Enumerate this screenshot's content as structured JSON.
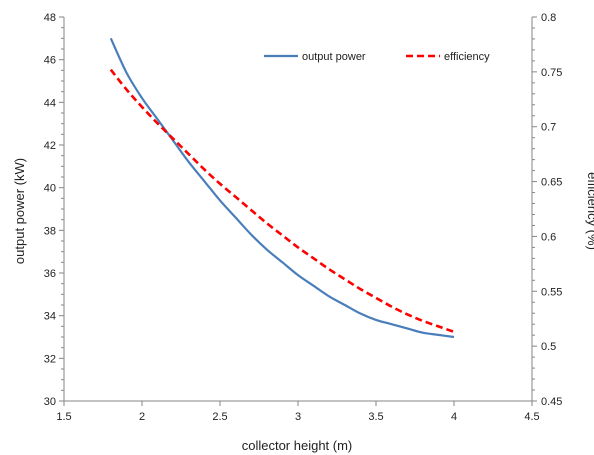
{
  "chart_data": {
    "type": "line",
    "xlabel": "collector height (m)",
    "ylabel": "output power (kW)",
    "y2label": "efficiency (%)",
    "xlim": [
      1.5,
      4.5
    ],
    "ylim": [
      30,
      48
    ],
    "y2lim": [
      0.45,
      0.8
    ],
    "x_ticks": [
      "1.5",
      "2",
      "2.5",
      "3",
      "3.5",
      "4",
      "4.5"
    ],
    "y_ticks": [
      "30",
      "32",
      "34",
      "36",
      "38",
      "40",
      "42",
      "44",
      "46",
      "48"
    ],
    "y2_ticks": [
      "0.45",
      "0.5",
      "0.55",
      "0.6",
      "0.65",
      "0.7",
      "0.75",
      "0.8"
    ],
    "grid": false,
    "legend_position": "top-right",
    "series": [
      {
        "name": "output power",
        "axis": "left",
        "color": "#4a7ebb",
        "style": "solid",
        "x": [
          1.8,
          1.9,
          2.0,
          2.1,
          2.2,
          2.3,
          2.4,
          2.5,
          2.6,
          2.7,
          2.8,
          2.9,
          3.0,
          3.1,
          3.2,
          3.3,
          3.4,
          3.5,
          3.6,
          3.7,
          3.8,
          3.9,
          4.0
        ],
        "y": [
          47.0,
          45.4,
          44.2,
          43.2,
          42.2,
          41.2,
          40.3,
          39.4,
          38.6,
          37.8,
          37.1,
          36.5,
          35.9,
          35.4,
          34.9,
          34.5,
          34.1,
          33.8,
          33.6,
          33.4,
          33.2,
          33.1,
          33.0
        ]
      },
      {
        "name": "efficiency",
        "axis": "right",
        "color": "#ff0000",
        "style": "dashed",
        "x": [
          1.8,
          1.9,
          2.0,
          2.1,
          2.2,
          2.3,
          2.4,
          2.5,
          2.6,
          2.7,
          2.8,
          2.9,
          3.0,
          3.1,
          3.2,
          3.3,
          3.4,
          3.5,
          3.6,
          3.7,
          3.8,
          3.9,
          4.0
        ],
        "y": [
          0.752,
          0.734,
          0.718,
          0.703,
          0.689,
          0.675,
          0.661,
          0.648,
          0.636,
          0.624,
          0.612,
          0.601,
          0.59,
          0.58,
          0.57,
          0.561,
          0.552,
          0.544,
          0.536,
          0.529,
          0.523,
          0.518,
          0.513
        ]
      }
    ]
  }
}
